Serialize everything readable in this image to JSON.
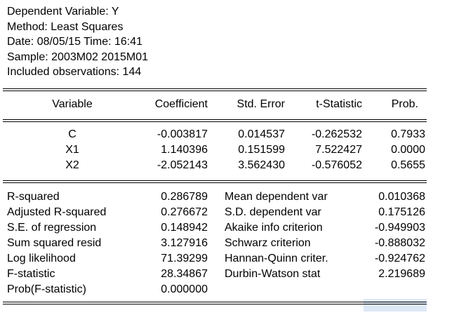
{
  "header": {
    "dependent": "Dependent Variable: Y",
    "method": "Method: Least Squares",
    "datetime": "Date: 08/05/15   Time: 16:41",
    "sample": "Sample: 2003M02 2015M01",
    "observations": "Included observations: 144"
  },
  "columns": [
    "Variable",
    "Coefficient",
    "Std. Error",
    "t-Statistic",
    "Prob."
  ],
  "coefficients": [
    {
      "variable": "C",
      "coefficient": "-0.003817",
      "std_error": "0.014537",
      "t_stat": "-0.262532",
      "prob": "0.7933"
    },
    {
      "variable": "X1",
      "coefficient": "1.140396",
      "std_error": "0.151599",
      "t_stat": "7.522427",
      "prob": "0.0000"
    },
    {
      "variable": "X2",
      "coefficient": "-2.052143",
      "std_error": "3.562430",
      "t_stat": "-0.576052",
      "prob": "0.5655"
    }
  ],
  "stats_left": [
    {
      "label": "R-squared",
      "value": "0.286789"
    },
    {
      "label": "Adjusted R-squared",
      "value": "0.276672"
    },
    {
      "label": "S.E. of regression",
      "value": "0.148942"
    },
    {
      "label": "Sum squared resid",
      "value": "3.127916"
    },
    {
      "label": "Log likelihood",
      "value": "71.39299"
    },
    {
      "label": "F-statistic",
      "value": "28.34867"
    },
    {
      "label": "Prob(F-statistic)",
      "value": "0.000000"
    }
  ],
  "stats_right": [
    {
      "label": "Mean dependent var",
      "value": "0.010368"
    },
    {
      "label": "S.D. dependent var",
      "value": "0.175126"
    },
    {
      "label": "Akaike info criterion",
      "value": "-0.949903"
    },
    {
      "label": "Schwarz criterion",
      "value": "-0.888032"
    },
    {
      "label": "Hannan-Quinn criter.",
      "value": "-0.924762"
    },
    {
      "label": "Durbin-Watson stat",
      "value": "2.219689"
    }
  ]
}
